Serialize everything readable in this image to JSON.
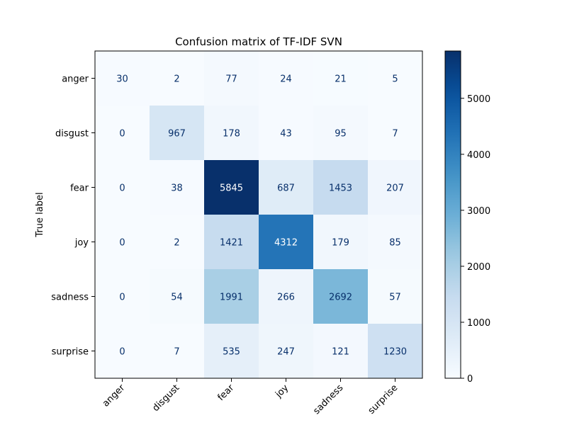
{
  "chart_data": {
    "type": "heatmap",
    "title": "Confusion matrix of TF-IDF SVN",
    "xlabel": "",
    "ylabel": "True label",
    "x_categories": [
      "anger",
      "disgust",
      "fear",
      "joy",
      "sadness",
      "surprise"
    ],
    "y_categories": [
      "anger",
      "disgust",
      "fear",
      "joy",
      "sadness",
      "surprise"
    ],
    "values": [
      [
        30,
        2,
        77,
        24,
        21,
        5
      ],
      [
        0,
        967,
        178,
        43,
        95,
        7
      ],
      [
        0,
        38,
        5845,
        687,
        1453,
        207
      ],
      [
        0,
        2,
        1421,
        4312,
        179,
        85
      ],
      [
        0,
        54,
        1991,
        266,
        2692,
        57
      ],
      [
        0,
        7,
        535,
        247,
        121,
        1230
      ]
    ],
    "colormap": "Blues",
    "vmin": 0,
    "vmax": 5845,
    "colorbar_ticks": [
      0,
      1000,
      2000,
      3000,
      4000,
      5000
    ],
    "x_tick_rotation_deg": 45,
    "grid": false
  }
}
